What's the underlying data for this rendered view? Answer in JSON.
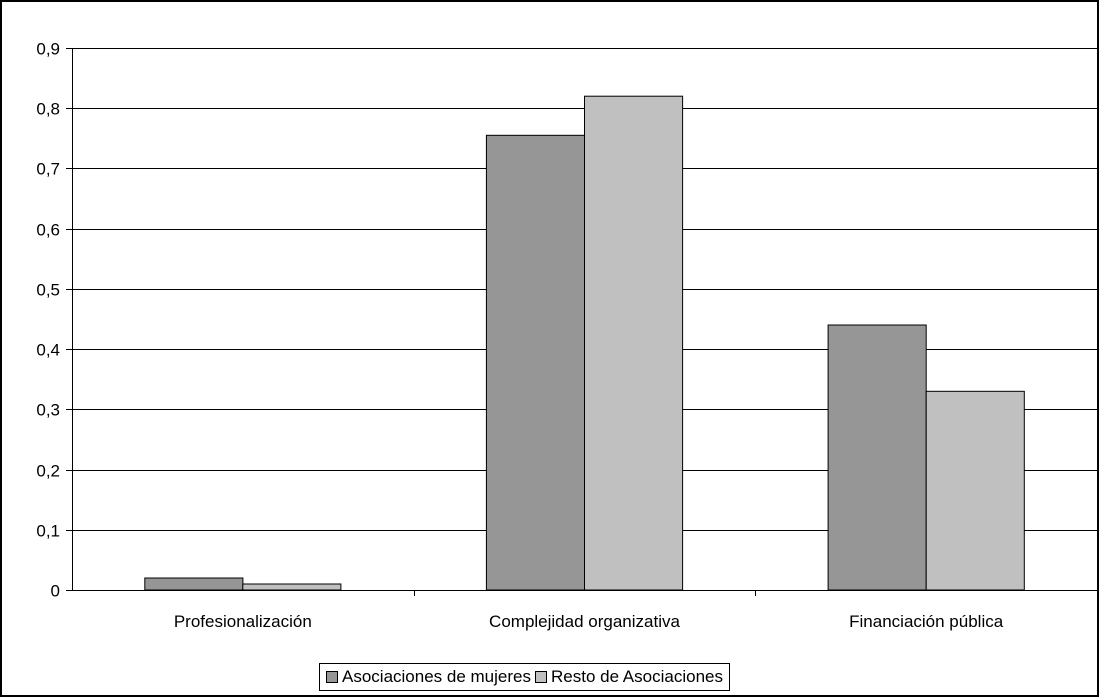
{
  "chart_data": {
    "type": "bar",
    "categories": [
      "Profesionalización",
      "Complejidad organizativa",
      "Financiación pública"
    ],
    "series": [
      {
        "name": "Asociaciones de mujeres",
        "values": [
          0.02,
          0.755,
          0.44
        ],
        "color": "#969696"
      },
      {
        "name": "Resto de Asociaciones",
        "values": [
          0.01,
          0.82,
          0.33
        ],
        "color": "#c0c0c0"
      }
    ],
    "ylim": [
      0,
      0.9
    ],
    "yticks": [
      0,
      0.1,
      0.2,
      0.3,
      0.4,
      0.5,
      0.6,
      0.7,
      0.8,
      0.9
    ],
    "ytick_labels": [
      "0",
      "0,1",
      "0,2",
      "0,3",
      "0,4",
      "0,5",
      "0,6",
      "0,7",
      "0,8",
      "0,9"
    ],
    "grid": true,
    "legend_position": "bottom",
    "title": "",
    "xlabel": "",
    "ylabel": ""
  }
}
